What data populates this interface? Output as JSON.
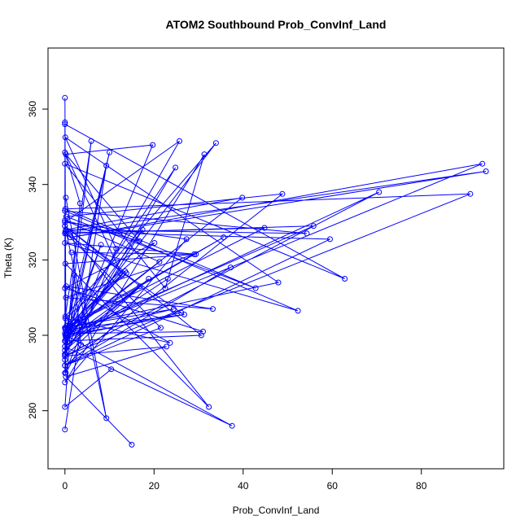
{
  "chart_data": {
    "type": "line",
    "title": "ATOM2 Southbound Prob_ConvInf_Land",
    "xlabel": "Prob_ConvInf_Land",
    "ylabel": "Theta (K)",
    "xlim": [
      -3.8,
      98.5
    ],
    "ylim": [
      264.6,
      376.2
    ],
    "x_ticks": [
      0,
      20,
      40,
      60,
      80
    ],
    "y_ticks": [
      280,
      300,
      320,
      340,
      360
    ],
    "grid": false,
    "legend": "none",
    "series_color": "#0000ff",
    "marker": "open-circle",
    "series": [
      {
        "x": [
          0,
          0.2,
          0,
          0,
          3.4,
          0,
          12.8,
          0.3,
          17.4,
          0,
          0,
          11.5,
          0.1,
          47.9,
          0,
          0.2,
          3.6,
          2.1,
          0,
          10.4
        ],
        "y": [
          363.0,
          299.0,
          356.5,
          293.5,
          335.0,
          348.5,
          316.0,
          300.5,
          328.0,
          295.0,
          290.0,
          323.0,
          352.5,
          314.0,
          302.0,
          290.0,
          297.5,
          316.0,
          281.0,
          291.0
        ]
      },
      {
        "x": [
          0,
          62.8,
          0,
          22.5,
          31.3,
          0,
          27.3,
          0,
          25.7,
          0,
          33.9,
          0.1,
          5.9,
          0,
          24.8,
          0.4,
          13.8,
          0,
          9.3,
          0.2
        ],
        "y": [
          356.0,
          315.0,
          345.5,
          312.5,
          348.0,
          287.5,
          325.5,
          330.0,
          351.5,
          298.5,
          351.0,
          305.0,
          351.5,
          295.0,
          344.5,
          302.5,
          316.5,
          329.0,
          278.0,
          336.5
        ]
      },
      {
        "x": [
          0.1,
          93.7,
          1.2,
          94.5,
          0.1,
          59.5,
          0,
          48.8,
          0.3,
          42.8,
          0.1,
          91.0,
          0,
          70.5,
          0.2,
          26.1,
          0.3,
          21.5,
          0,
          37.2
        ],
        "y": [
          300.0,
          345.5,
          326.0,
          343.5,
          327.5,
          325.5,
          292.0,
          337.5,
          331.5,
          312.5,
          333.5,
          337.5,
          294.5,
          338.0,
          299.5,
          306.0,
          327.0,
          302.0,
          292.0,
          318.0
        ]
      },
      {
        "x": [
          0.3,
          39.8,
          0.2,
          54.3,
          0,
          52.3,
          0,
          29.4,
          0.1,
          32.3,
          0,
          30.6,
          0.1,
          8.1,
          0,
          18.8,
          0,
          22.8,
          0.2,
          15.0
        ],
        "y": [
          300.5,
          336.5,
          328.0,
          327.0,
          333.0,
          306.5,
          324.5,
          321.5,
          319.0,
          281.0,
          329.0,
          300.0,
          298.5,
          324.0,
          296.0,
          315.0,
          294.5,
          297.0,
          289.0,
          271.0
        ]
      },
      {
        "x": [
          1.5,
          29.0,
          0.2,
          33.2,
          0.3,
          23.6,
          0.1,
          20.1,
          0,
          31.0,
          0.4,
          55.8,
          0,
          44.8,
          0.2,
          13.5,
          0,
          16.8,
          0,
          23.1
        ],
        "y": [
          322.0,
          321.5,
          310.0,
          307.0,
          313.0,
          298.0,
          304.5,
          324.5,
          312.5,
          301.0,
          300.5,
          329.0,
          327.0,
          328.5,
          302.0,
          317.0,
          298.5,
          313.0,
          297.0,
          315.0
        ]
      },
      {
        "x": [
          0,
          9.3,
          0.1,
          19.7,
          0.2,
          16.7,
          0,
          21.2,
          0.3,
          26.8,
          0.1,
          35.6,
          0,
          24.4,
          0.2,
          37.5,
          0,
          10.0,
          0,
          12.4
        ],
        "y": [
          275.0,
          345.0,
          295.0,
          350.5,
          348.0,
          325.0,
          330.5,
          319.5,
          300.0,
          305.5,
          301.5,
          326.0,
          302.0,
          307.0,
          300.0,
          276.0,
          297.0,
          348.5,
          300.5,
          316.5
        ]
      }
    ]
  }
}
